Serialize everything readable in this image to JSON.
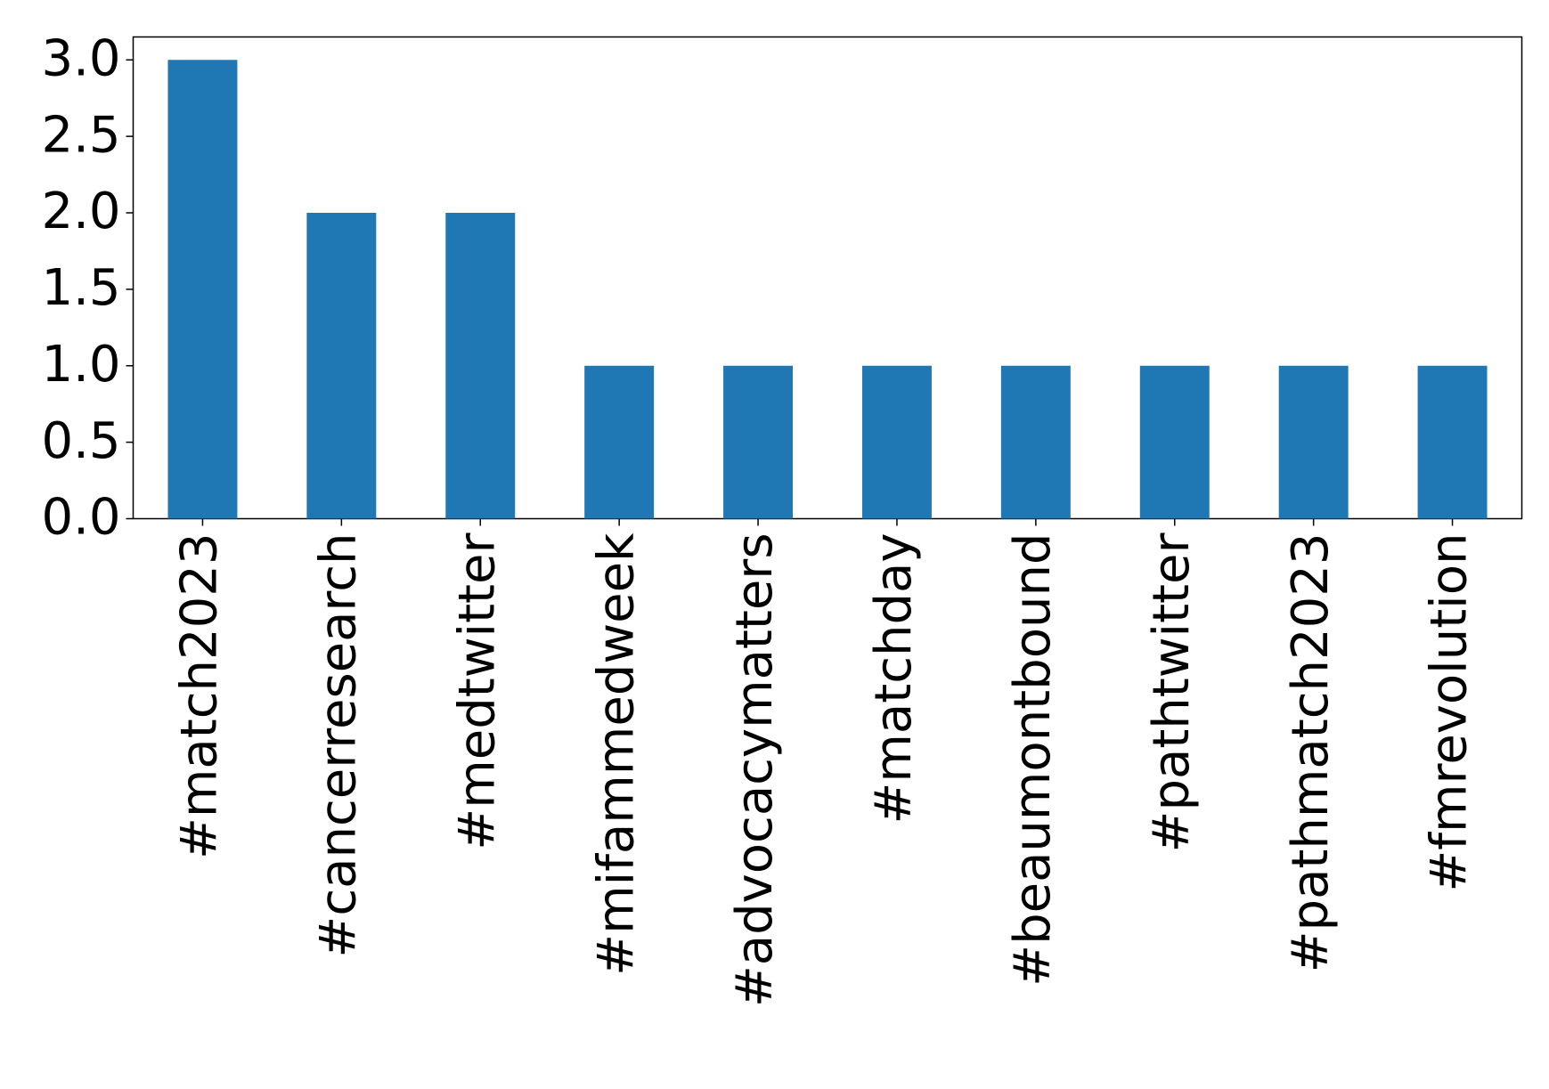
{
  "chart_data": {
    "type": "bar",
    "categories": [
      "#match2023",
      "#cancerresearch",
      "#medtwitter",
      "#mifammedweek",
      "#advocacymatters",
      "#matchday",
      "#beaumontbound",
      "#pathtwitter",
      "#pathmatch2023",
      "#fmrevolution"
    ],
    "values": [
      3,
      2,
      2,
      1,
      1,
      1,
      1,
      1,
      1,
      1
    ],
    "color": "#1f77b4",
    "ylim": [
      0,
      3.15
    ],
    "yticks": [
      {
        "value": 0,
        "label": "0.0"
      },
      0.5,
      {
        "value": 1,
        "label": "1.0"
      },
      1.5,
      {
        "value": 2,
        "label": "2.0"
      },
      2.5,
      {
        "value": 3,
        "label": "3.0"
      }
    ],
    "grid": false
  }
}
